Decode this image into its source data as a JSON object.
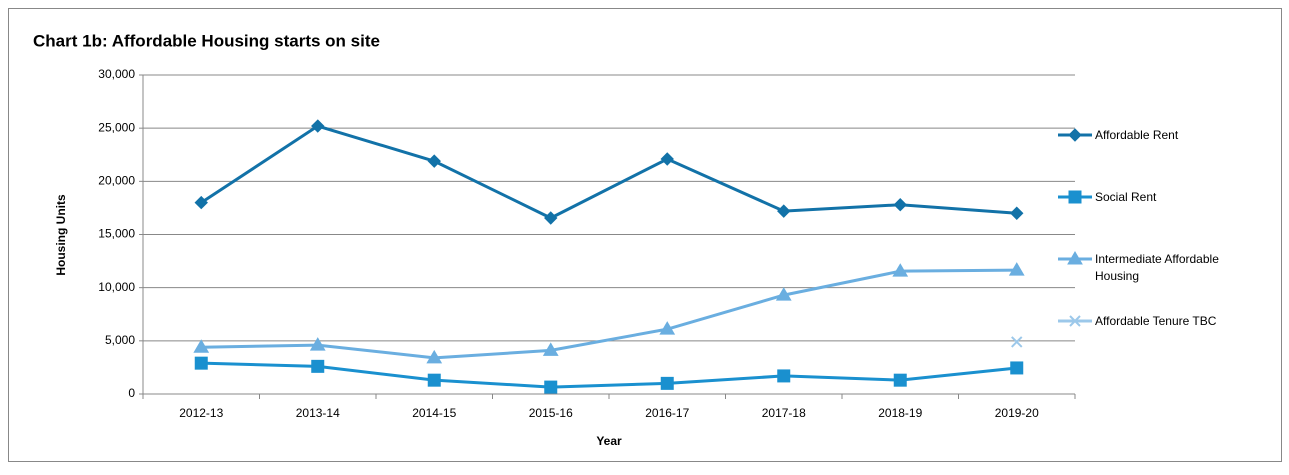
{
  "chart_data": {
    "type": "line",
    "title": "Chart 1b: Affordable Housing starts on site",
    "x_label": "Year",
    "y_label": "Housing Units",
    "categories": [
      "2012-13",
      "2013-14",
      "2014-15",
      "2015-16",
      "2016-17",
      "2017-18",
      "2018-19",
      "2019-20"
    ],
    "series": [
      {
        "name": "Affordable Rent",
        "color": "#1272a8",
        "marker": "diamond",
        "values": [
          18000,
          25200,
          21900,
          16550,
          22100,
          17200,
          17800,
          17000
        ]
      },
      {
        "name": "Social Rent",
        "color": "#1a90cf",
        "marker": "square",
        "values": [
          2900,
          2600,
          1300,
          650,
          1000,
          1700,
          1300,
          2450
        ]
      },
      {
        "name": "Intermediate Affordable Housing",
        "color": "#6aaee0",
        "marker": "triangle",
        "values": [
          4400,
          4600,
          3400,
          4100,
          6100,
          9300,
          11550,
          11650
        ]
      },
      {
        "name": "Affordable Tenure TBC",
        "color": "#9cc8ea",
        "marker": "x",
        "values": [
          null,
          null,
          null,
          null,
          null,
          null,
          null,
          4900
        ]
      }
    ],
    "ylim": [
      0,
      30000
    ],
    "yticks": [
      0,
      {
        "value": 5000,
        "label": "5,000"
      },
      {
        "value": 10000,
        "label": "10,000"
      },
      {
        "value": 15000,
        "label": "15,000"
      },
      {
        "value": 20000,
        "label": "20,000"
      },
      {
        "value": 25000,
        "label": "25,000"
      },
      {
        "value": 30000,
        "label": "30,000"
      }
    ],
    "grid": true,
    "legend": "right"
  }
}
